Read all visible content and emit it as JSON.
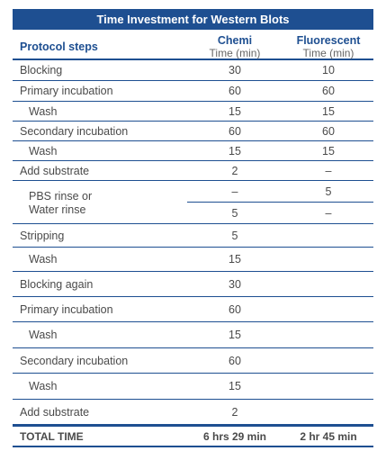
{
  "title": "Time Investment for Western Blots",
  "header": {
    "steps": "Protocol steps",
    "chemi": "Chemi",
    "chemi_unit": "Time (min)",
    "fluor": "Fluorescent",
    "fluor_unit": "Time (min)"
  },
  "rows": [
    {
      "label": "Blocking",
      "chemi": "30",
      "fluor": "10"
    },
    {
      "label": "Primary incubation",
      "chemi": "60",
      "fluor": "60"
    },
    {
      "label": "Wash",
      "chemi": "15",
      "fluor": "15"
    },
    {
      "label": "Secondary incubation",
      "chemi": "60",
      "fluor": "60"
    },
    {
      "label": "Wash",
      "chemi": "15",
      "fluor": "15"
    },
    {
      "label": "Add substrate",
      "chemi": "2",
      "fluor": "–"
    },
    {
      "label_line1": "PBS rinse or",
      "label_line2": "Water rinse",
      "chemi_top": "–",
      "fluor_top": "5",
      "chemi_bot": "5",
      "fluor_bot": "–"
    },
    {
      "label": "Stripping",
      "chemi": "5",
      "fluor": ""
    },
    {
      "label": "Wash",
      "chemi": "15",
      "fluor": ""
    },
    {
      "label": "Blocking again",
      "chemi": "30",
      "fluor": ""
    },
    {
      "label": "Primary incubation",
      "chemi": "60",
      "fluor": ""
    },
    {
      "label": "Wash",
      "chemi": "15",
      "fluor": ""
    },
    {
      "label": "Secondary incubation",
      "chemi": "60",
      "fluor": ""
    },
    {
      "label": "Wash",
      "chemi": "15",
      "fluor": ""
    },
    {
      "label": "Add substrate",
      "chemi": "2",
      "fluor": ""
    }
  ],
  "total": {
    "label": "TOTAL TIME",
    "chemi": "6 hrs 29 min",
    "fluor": "2 hr 45 min"
  }
}
